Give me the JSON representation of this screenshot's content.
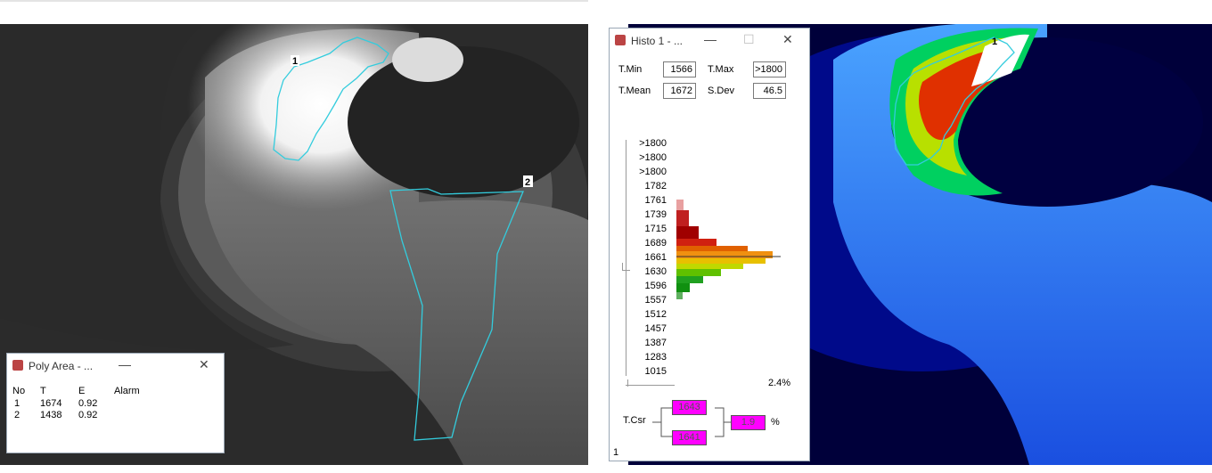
{
  "left_image": {
    "polygon_labels": [
      "1",
      "2"
    ]
  },
  "poly_window": {
    "title": "Poly Area - ...",
    "headers": [
      "No",
      "T",
      "E",
      "Alarm"
    ],
    "rows": [
      [
        "1",
        "1674",
        "0.92"
      ],
      [
        "2",
        "1438",
        "0.92"
      ]
    ]
  },
  "histo_window": {
    "title": "Histo 1 - ...",
    "fields": [
      {
        "label": "T.Min",
        "value": "1566"
      },
      {
        "label": "T.Max",
        "value": ">1800"
      },
      {
        "label": "T.Mean",
        "value": "1672"
      },
      {
        "label": "S.Dev",
        "value": "46.5"
      }
    ],
    "scale": [
      ">1800",
      ">1800",
      ">1800",
      "1782",
      "1761",
      "1739",
      "1715",
      "1689",
      "1661",
      "1630",
      "1596",
      "1557",
      "1512",
      "1457",
      "1387",
      "1283",
      "1015"
    ],
    "percent": "2.4%",
    "cursor": {
      "label": "T.Csr",
      "upper": "1643",
      "lower": "1641",
      "diff": "1.9",
      "unit": "%"
    },
    "status": "1"
  },
  "right_image": {
    "polygon_label": "1"
  }
}
